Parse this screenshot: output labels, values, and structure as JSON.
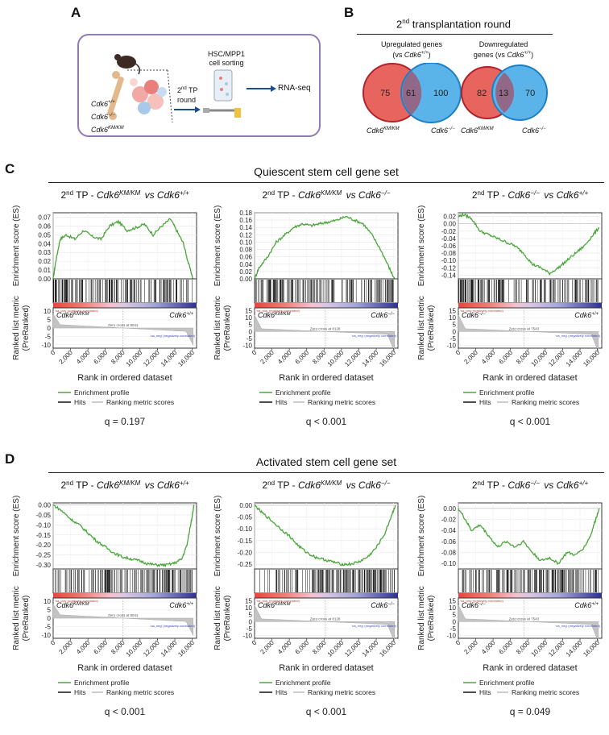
{
  "panel_a": {
    "letter": "A",
    "genotypes": [
      {
        "base": "Cdk6",
        "sup": "+/+"
      },
      {
        "base": "Cdk6",
        "sup": "−/−"
      },
      {
        "base": "Cdk6",
        "sup": "KM/KM"
      }
    ],
    "round_line1": "2",
    "round_sup": "nd",
    "round_line1_rest": " TP",
    "round_line2": "round",
    "sorting_line1": "HSC/MPP1",
    "sorting_line2": "cell sorting",
    "rnaseq": "RNA-seq"
  },
  "panel_b": {
    "letter": "B",
    "title_pre": "2",
    "title_sup": "nd",
    "title_rest": " transplantation round",
    "up": {
      "title_line1": "Upregulated genes",
      "title_line2_pre": "(vs ",
      "title_line2_base": "Cdk6",
      "title_line2_sup": "+/+",
      "title_line2_post": ")",
      "left": "75",
      "overlap": "61",
      "right": "100"
    },
    "down": {
      "title_line1": "Downregulated",
      "title_line2_pre": "genes (vs ",
      "title_line2_base": "Cdk6",
      "title_line2_sup": "+/+",
      "title_line2_post": ")",
      "left": "82",
      "overlap": "13",
      "right": "70"
    },
    "label_km": {
      "base": "Cdk6",
      "sup": "KM/KM"
    },
    "label_ko": {
      "base": "Cdk6",
      "sup": "−/−"
    },
    "colors": {
      "red": "#e8655f",
      "red_edge": "#b0232b",
      "blue": "#5ab4ea",
      "blue_edge": "#1f7fc4"
    }
  },
  "panel_c": {
    "letter": "C",
    "title": "Quiescent stem cell gene set"
  },
  "panel_d": {
    "letter": "D",
    "title": "Activated stem cell gene set"
  },
  "plot_text": {
    "es_ylabel": "Enrichment score (ES)",
    "metric_ylabel1": "Ranked list metric",
    "metric_ylabel2": "(PreRanked)",
    "xlabel": "Rank in ordered dataset",
    "legend_profile": "Enrichment profile",
    "legend_hits": "Hits",
    "legend_ranking": "Ranking metric scores",
    "na_pos": "'na_pos' (positively correlated)",
    "na_neg": "'na_neg' (negatively correlated)",
    "x_ticks": [
      "0",
      "2,000",
      "4,000",
      "6,000",
      "8,000",
      "10,000",
      "12,000",
      "14,000",
      "16,000"
    ]
  },
  "chart_data": [
    {
      "type": "line",
      "panel": "C",
      "title_pre": "2nd TP - ",
      "title_a": "Cdk6KM/KM",
      "title_b": "Cdk6+/+",
      "x_range": [
        0,
        16500
      ],
      "ylim": [
        0,
        0.075
      ],
      "y_ticks": [
        "0.07",
        "0.06",
        "0.05",
        "0.04",
        "0.03",
        "0.02",
        "0.01",
        "0.00"
      ],
      "metric_ticks": [
        "10",
        "5",
        "0",
        "-5",
        "-10"
      ],
      "metric_range": [
        -12,
        12
      ],
      "left_label": {
        "base": "Cdk6",
        "sup": "KM/KM"
      },
      "right_label": {
        "base": "Cdk6",
        "sup": "+/+"
      },
      "zero_cross": "Zero cross at 8041",
      "zero_x": 8041,
      "es": [
        [
          0,
          0.0
        ],
        [
          300,
          0.02
        ],
        [
          800,
          0.045
        ],
        [
          1500,
          0.05
        ],
        [
          2500,
          0.045
        ],
        [
          3500,
          0.055
        ],
        [
          4500,
          0.048
        ],
        [
          5500,
          0.045
        ],
        [
          6500,
          0.06
        ],
        [
          7500,
          0.065
        ],
        [
          8500,
          0.055
        ],
        [
          9500,
          0.058
        ],
        [
          10500,
          0.062
        ],
        [
          11500,
          0.05
        ],
        [
          12500,
          0.06
        ],
        [
          13500,
          0.068
        ],
        [
          14200,
          0.055
        ],
        [
          15000,
          0.04
        ],
        [
          15500,
          0.02
        ],
        [
          16100,
          0.0
        ]
      ],
      "q": "q = 0.197"
    },
    {
      "type": "line",
      "panel": "C",
      "title_pre": "2nd TP - ",
      "title_a": "Cdk6KM/KM",
      "title_b": "Cdk6−/−",
      "x_range": [
        0,
        16500
      ],
      "ylim": [
        0,
        0.18
      ],
      "y_ticks": [
        "0.18",
        "0.16",
        "0.14",
        "0.12",
        "0.10",
        "0.08",
        "0.06",
        "0.04",
        "0.02",
        "0.00"
      ],
      "metric_ticks": [
        "15",
        "10",
        "5",
        "0",
        "-5",
        "-10"
      ],
      "metric_range": [
        -12,
        17
      ],
      "left_label": {
        "base": "Cdk6",
        "sup": "KM/KM"
      },
      "right_label": {
        "base": "Cdk6",
        "sup": "−/−"
      },
      "zero_cross": "Zero cross at 8128",
      "zero_x": 8128,
      "es": [
        [
          0,
          0.0
        ],
        [
          500,
          0.03
        ],
        [
          1500,
          0.06
        ],
        [
          2500,
          0.1
        ],
        [
          3500,
          0.12
        ],
        [
          4500,
          0.14
        ],
        [
          5500,
          0.15
        ],
        [
          6500,
          0.145
        ],
        [
          7500,
          0.15
        ],
        [
          8500,
          0.155
        ],
        [
          9500,
          0.16
        ],
        [
          10500,
          0.17
        ],
        [
          11500,
          0.16
        ],
        [
          12500,
          0.15
        ],
        [
          13500,
          0.12
        ],
        [
          14500,
          0.08
        ],
        [
          15500,
          0.03
        ],
        [
          16100,
          0.0
        ]
      ],
      "q": "q < 0.001"
    },
    {
      "type": "line",
      "panel": "C",
      "title_pre": "2nd TP - ",
      "title_a": "Cdk6−/−",
      "title_b": "Cdk6+/+",
      "x_range": [
        0,
        16500
      ],
      "ylim": [
        -0.15,
        0.03
      ],
      "y_ticks": [
        "0.02",
        "0.00",
        "-0.02",
        "-0.04",
        "-0.06",
        "-0.08",
        "-0.10",
        "-0.12",
        "-0.14"
      ],
      "metric_ticks": [
        "15",
        "10",
        "5",
        "0",
        "-5",
        "-10"
      ],
      "metric_range": [
        -12,
        17
      ],
      "left_label": {
        "base": "Cdk6",
        "sup": "−/−"
      },
      "right_label": {
        "base": "Cdk6",
        "sup": "+/+"
      },
      "zero_cross": "Zero cross at 7543",
      "zero_x": 7543,
      "es": [
        [
          0,
          0.02
        ],
        [
          600,
          0.025
        ],
        [
          1500,
          0.015
        ],
        [
          2500,
          -0.02
        ],
        [
          3500,
          -0.03
        ],
        [
          4500,
          -0.04
        ],
        [
          5500,
          -0.05
        ],
        [
          6500,
          -0.06
        ],
        [
          7500,
          -0.08
        ],
        [
          8500,
          -0.11
        ],
        [
          9500,
          -0.12
        ],
        [
          10500,
          -0.135
        ],
        [
          11500,
          -0.12
        ],
        [
          12500,
          -0.1
        ],
        [
          13500,
          -0.08
        ],
        [
          14500,
          -0.06
        ],
        [
          15500,
          -0.03
        ],
        [
          16200,
          -0.01
        ]
      ],
      "q": "q < 0.001"
    },
    {
      "type": "line",
      "panel": "D",
      "title_pre": "2nd TP - ",
      "title_a": "Cdk6KM/KM",
      "title_b": "Cdk6+/+",
      "x_range": [
        0,
        16500
      ],
      "ylim": [
        -0.32,
        0.01
      ],
      "y_ticks": [
        "0.00",
        "-0.05",
        "-0.10",
        "-0.15",
        "-0.20",
        "-0.25",
        "-0.30"
      ],
      "metric_ticks": [
        "10",
        "5",
        "0",
        "-5",
        "-10"
      ],
      "metric_range": [
        -12,
        12
      ],
      "left_label": {
        "base": "Cdk6",
        "sup": "KM/KM"
      },
      "right_label": {
        "base": "Cdk6",
        "sup": "+/+"
      },
      "zero_cross": "Zero cross at 8041",
      "zero_x": 8041,
      "es": [
        [
          0,
          0.0
        ],
        [
          1000,
          -0.03
        ],
        [
          2000,
          -0.07
        ],
        [
          3000,
          -0.1
        ],
        [
          4000,
          -0.14
        ],
        [
          5000,
          -0.18
        ],
        [
          6000,
          -0.21
        ],
        [
          7000,
          -0.24
        ],
        [
          8000,
          -0.26
        ],
        [
          9000,
          -0.27
        ],
        [
          10000,
          -0.28
        ],
        [
          11000,
          -0.295
        ],
        [
          12000,
          -0.3
        ],
        [
          13000,
          -0.3
        ],
        [
          14000,
          -0.29
        ],
        [
          14800,
          -0.27
        ],
        [
          15400,
          -0.2
        ],
        [
          15900,
          -0.08
        ],
        [
          16200,
          0.0
        ]
      ],
      "q": "q < 0.001"
    },
    {
      "type": "line",
      "panel": "D",
      "title_pre": "2nd TP - ",
      "title_a": "Cdk6KM/KM",
      "title_b": "Cdk6−/−",
      "x_range": [
        0,
        16500
      ],
      "ylim": [
        -0.27,
        0.01
      ],
      "y_ticks": [
        "0.00",
        "-0.05",
        "-0.10",
        "-0.15",
        "-0.20",
        "-0.25"
      ],
      "metric_ticks": [
        "15",
        "10",
        "5",
        "0",
        "-5",
        "-10"
      ],
      "metric_range": [
        -12,
        17
      ],
      "left_label": {
        "base": "Cdk6",
        "sup": "KM/KM"
      },
      "right_label": {
        "base": "Cdk6",
        "sup": "−/−"
      },
      "zero_cross": "Zero cross at 8128",
      "zero_x": 8128,
      "es": [
        [
          0,
          0.0
        ],
        [
          800,
          -0.03
        ],
        [
          1800,
          -0.06
        ],
        [
          3000,
          -0.1
        ],
        [
          4000,
          -0.13
        ],
        [
          5000,
          -0.17
        ],
        [
          6000,
          -0.2
        ],
        [
          7000,
          -0.22
        ],
        [
          8000,
          -0.23
        ],
        [
          9000,
          -0.24
        ],
        [
          10000,
          -0.25
        ],
        [
          11000,
          -0.25
        ],
        [
          12000,
          -0.24
        ],
        [
          13000,
          -0.22
        ],
        [
          14000,
          -0.18
        ],
        [
          15000,
          -0.12
        ],
        [
          15700,
          -0.05
        ],
        [
          16200,
          0.0
        ]
      ],
      "q": "q < 0.001"
    },
    {
      "type": "line",
      "panel": "D",
      "title_pre": "2nd TP - ",
      "title_a": "Cdk6−/−",
      "title_b": "Cdk6+/+",
      "x_range": [
        0,
        16500
      ],
      "ylim": [
        -0.11,
        0.01
      ],
      "y_ticks": [
        "0.00",
        "-0.02",
        "-0.04",
        "-0.06",
        "-0.08",
        "-0.10"
      ],
      "metric_ticks": [
        "15",
        "10",
        "5",
        "0",
        "-5",
        "-10"
      ],
      "metric_range": [
        -12,
        17
      ],
      "left_label": {
        "base": "Cdk6",
        "sup": "−/−"
      },
      "right_label": {
        "base": "Cdk6",
        "sup": "+/+"
      },
      "zero_cross": "Zero cross at 7543",
      "zero_x": 7543,
      "es": [
        [
          0,
          0.0
        ],
        [
          800,
          -0.02
        ],
        [
          1500,
          -0.04
        ],
        [
          2500,
          -0.03
        ],
        [
          3500,
          -0.05
        ],
        [
          4500,
          -0.07
        ],
        [
          5500,
          -0.06
        ],
        [
          6500,
          -0.07
        ],
        [
          7500,
          -0.06
        ],
        [
          8500,
          -0.08
        ],
        [
          9500,
          -0.095
        ],
        [
          10500,
          -0.09
        ],
        [
          11500,
          -0.1
        ],
        [
          12500,
          -0.08
        ],
        [
          13500,
          -0.085
        ],
        [
          14500,
          -0.07
        ],
        [
          15200,
          -0.05
        ],
        [
          15800,
          -0.02
        ],
        [
          16200,
          0.0
        ]
      ],
      "q": "q = 0.049"
    }
  ]
}
